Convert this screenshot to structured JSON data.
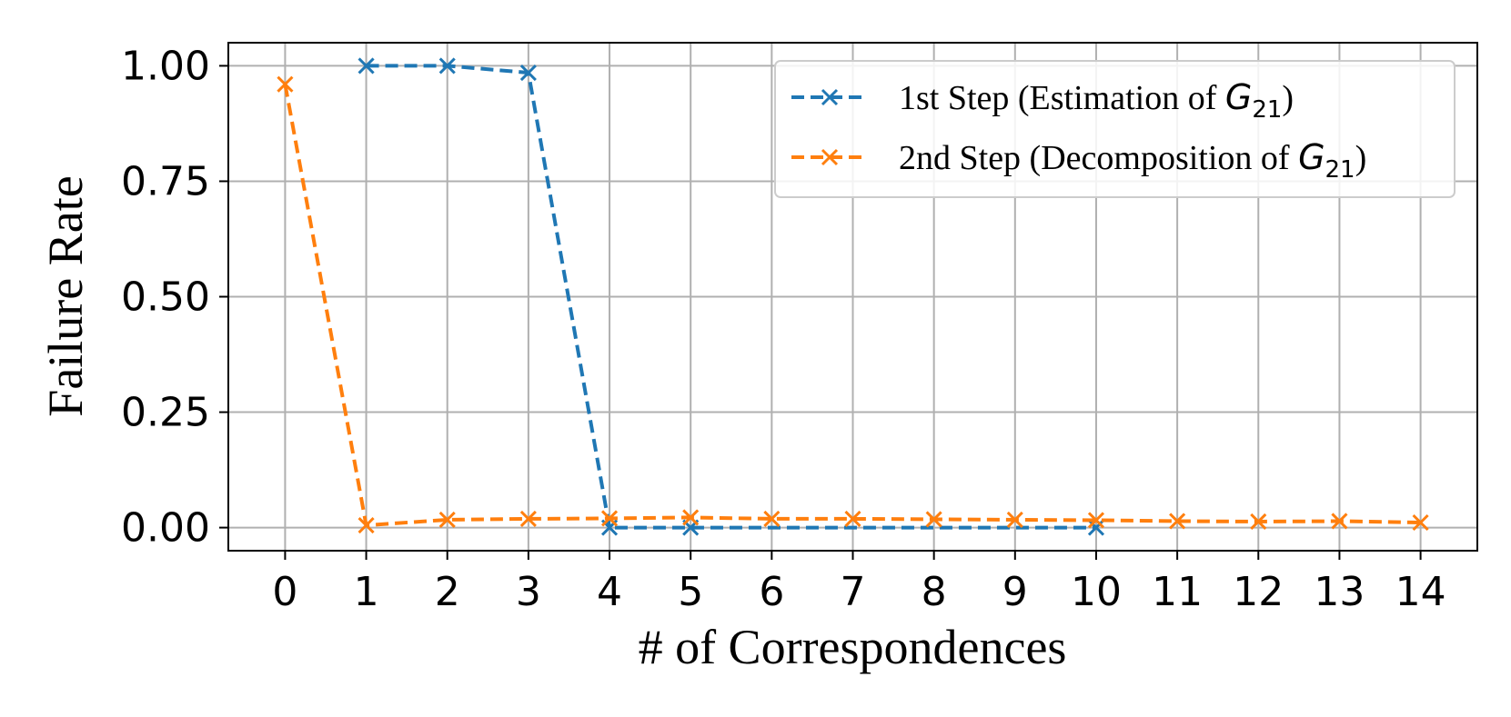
{
  "chart_data": {
    "type": "line",
    "title": "",
    "xlabel": "# of Correspondences",
    "ylabel": "Failure Rate",
    "x": [
      0,
      1,
      2,
      3,
      4,
      5,
      6,
      7,
      8,
      9,
      10,
      11,
      12,
      13,
      14
    ],
    "x_ticks": [
      "0",
      "1",
      "2",
      "3",
      "4",
      "5",
      "6",
      "7",
      "8",
      "9",
      "10",
      "11",
      "12",
      "13",
      "14"
    ],
    "y_ticks": [
      "0.00",
      "0.25",
      "0.50",
      "0.75",
      "1.00"
    ],
    "xlim": [
      -0.7,
      14.7
    ],
    "ylim": [
      -0.05,
      1.05
    ],
    "grid": true,
    "legend_position": "top-right",
    "series": [
      {
        "name": "1st Step (Estimation of G21)",
        "legend_prefix": "1st Step (Estimation of ",
        "legend_symbol": "G",
        "legend_subscript": "21",
        "legend_suffix": ")",
        "color": "#1f77b4",
        "x": [
          1,
          2,
          3,
          4,
          5,
          10
        ],
        "values": [
          1.0,
          1.0,
          0.985,
          0.0,
          0.0,
          0.0
        ]
      },
      {
        "name": "2nd Step (Decomposition of G21)",
        "legend_prefix": "2nd Step (Decomposition of ",
        "legend_symbol": "G",
        "legend_subscript": "21",
        "legend_suffix": ")",
        "color": "#ff7f0e",
        "x": [
          0,
          1,
          2,
          3,
          4,
          5,
          6,
          7,
          8,
          9,
          10,
          11,
          12,
          13,
          14
        ],
        "values": [
          0.96,
          0.005,
          0.017,
          0.019,
          0.02,
          0.022,
          0.019,
          0.019,
          0.018,
          0.017,
          0.016,
          0.014,
          0.013,
          0.014,
          0.011
        ]
      }
    ]
  }
}
